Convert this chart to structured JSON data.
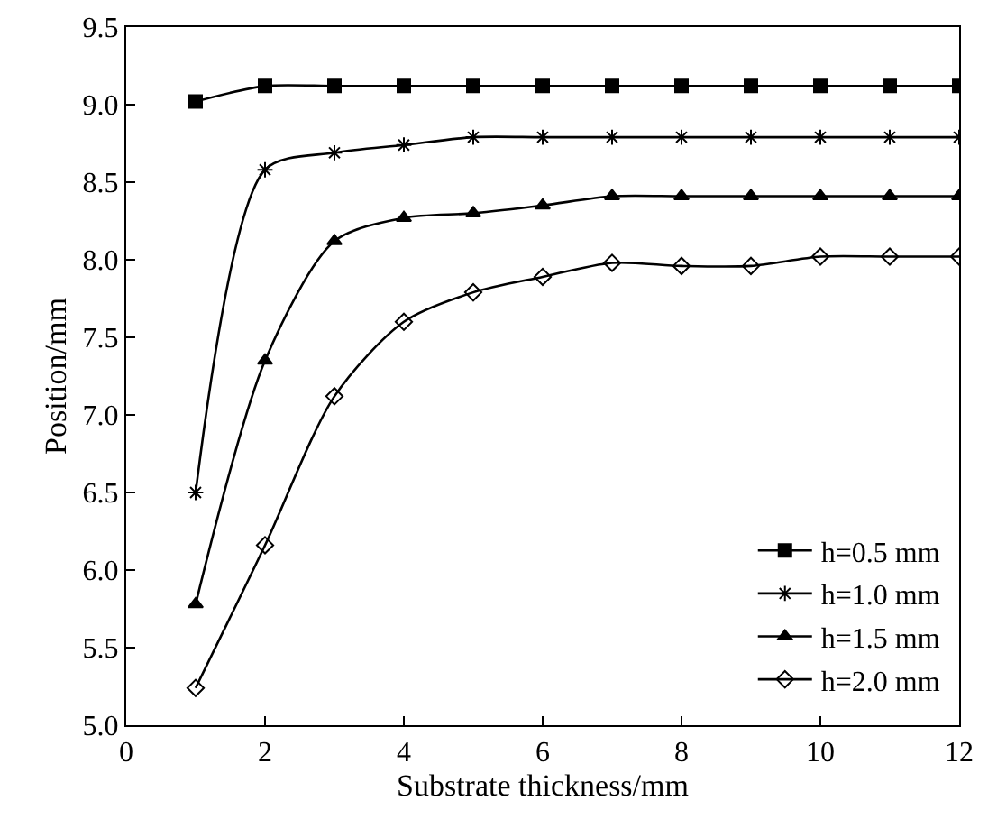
{
  "chart_data": {
    "type": "line",
    "xlabel": "Substrate thickness/mm",
    "ylabel": "Position/mm",
    "x": [
      1,
      2,
      3,
      4,
      5,
      6,
      7,
      8,
      9,
      10,
      11,
      12
    ],
    "series": [
      {
        "name": "h=0.5 mm",
        "color": "#000000",
        "marker": "square",
        "values": [
          9.02,
          9.12,
          9.12,
          9.12,
          9.12,
          9.12,
          9.12,
          9.12,
          9.12,
          9.12,
          9.12,
          9.12
        ]
      },
      {
        "name": "h=1.0 mm",
        "color": "#000000",
        "marker": "cross",
        "values": [
          6.5,
          8.58,
          8.69,
          8.74,
          8.79,
          8.79,
          8.79,
          8.79,
          8.79,
          8.79,
          8.79,
          8.79
        ]
      },
      {
        "name": "h=1.5 mm",
        "color": "#000000",
        "marker": "triangle",
        "values": [
          5.78,
          7.35,
          8.12,
          8.27,
          8.3,
          8.35,
          8.41,
          8.41,
          8.41,
          8.41,
          8.41,
          8.41
        ]
      },
      {
        "name": "h=2.0 mm",
        "color": "#000000",
        "marker": "diamond",
        "values": [
          5.24,
          6.16,
          7.12,
          7.6,
          7.79,
          7.89,
          7.98,
          7.96,
          7.96,
          8.02,
          8.02,
          8.02
        ]
      }
    ],
    "xlim": [
      0,
      12
    ],
    "xticks": [
      0,
      2,
      4,
      6,
      8,
      10,
      12
    ],
    "ylim": [
      5.0,
      9.5
    ],
    "yticks": [
      {
        "value": 5.0,
        "label": "5.0"
      },
      {
        "value": 5.5,
        "label": "5.5"
      },
      {
        "value": 6.0,
        "label": "6.0"
      },
      {
        "value": 6.5,
        "label": "6.5"
      },
      {
        "value": 7.0,
        "label": "7.0"
      },
      {
        "value": 7.5,
        "label": "7.5"
      },
      {
        "value": 8.0,
        "label": "8.0"
      },
      {
        "value": 8.5,
        "label": "8.5"
      },
      {
        "value": 9.0,
        "label": "9.0"
      },
      {
        "value": 9.5,
        "label": "9.5"
      }
    ],
    "legend": "bottom right",
    "line_style": "solid"
  }
}
